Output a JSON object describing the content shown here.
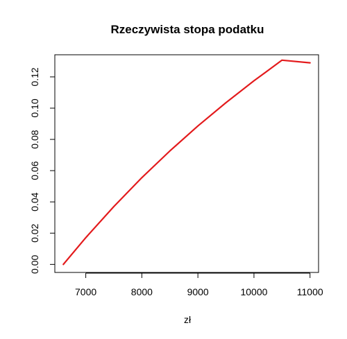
{
  "chart_data": {
    "type": "line",
    "title": "Rzeczywista stopa podatku",
    "xlabel": "zł",
    "ylabel": "",
    "xlim": [
      6448,
      11152
    ],
    "ylim": [
      -0.00516,
      0.13416
    ],
    "xticks": [
      7000,
      8000,
      9000,
      10000,
      11000
    ],
    "xtick_labels": [
      "7000",
      "8000",
      "9000",
      "10000",
      "11000"
    ],
    "yticks": [
      0.0,
      0.02,
      0.04,
      0.06,
      0.08,
      0.1,
      0.12
    ],
    "ytick_labels": [
      "0.00",
      "0.02",
      "0.04",
      "0.06",
      "0.08",
      "0.10",
      "0.12"
    ],
    "grid": false,
    "series": [
      {
        "color": "#e31a1c",
        "x": [
          6600,
          7000,
          7500,
          8000,
          8500,
          9000,
          9500,
          10000,
          10500,
          11000
        ],
        "y": [
          0.0,
          0.0171,
          0.037,
          0.0555,
          0.0726,
          0.0886,
          0.1035,
          0.1175,
          0.1307,
          0.129
        ]
      }
    ]
  }
}
